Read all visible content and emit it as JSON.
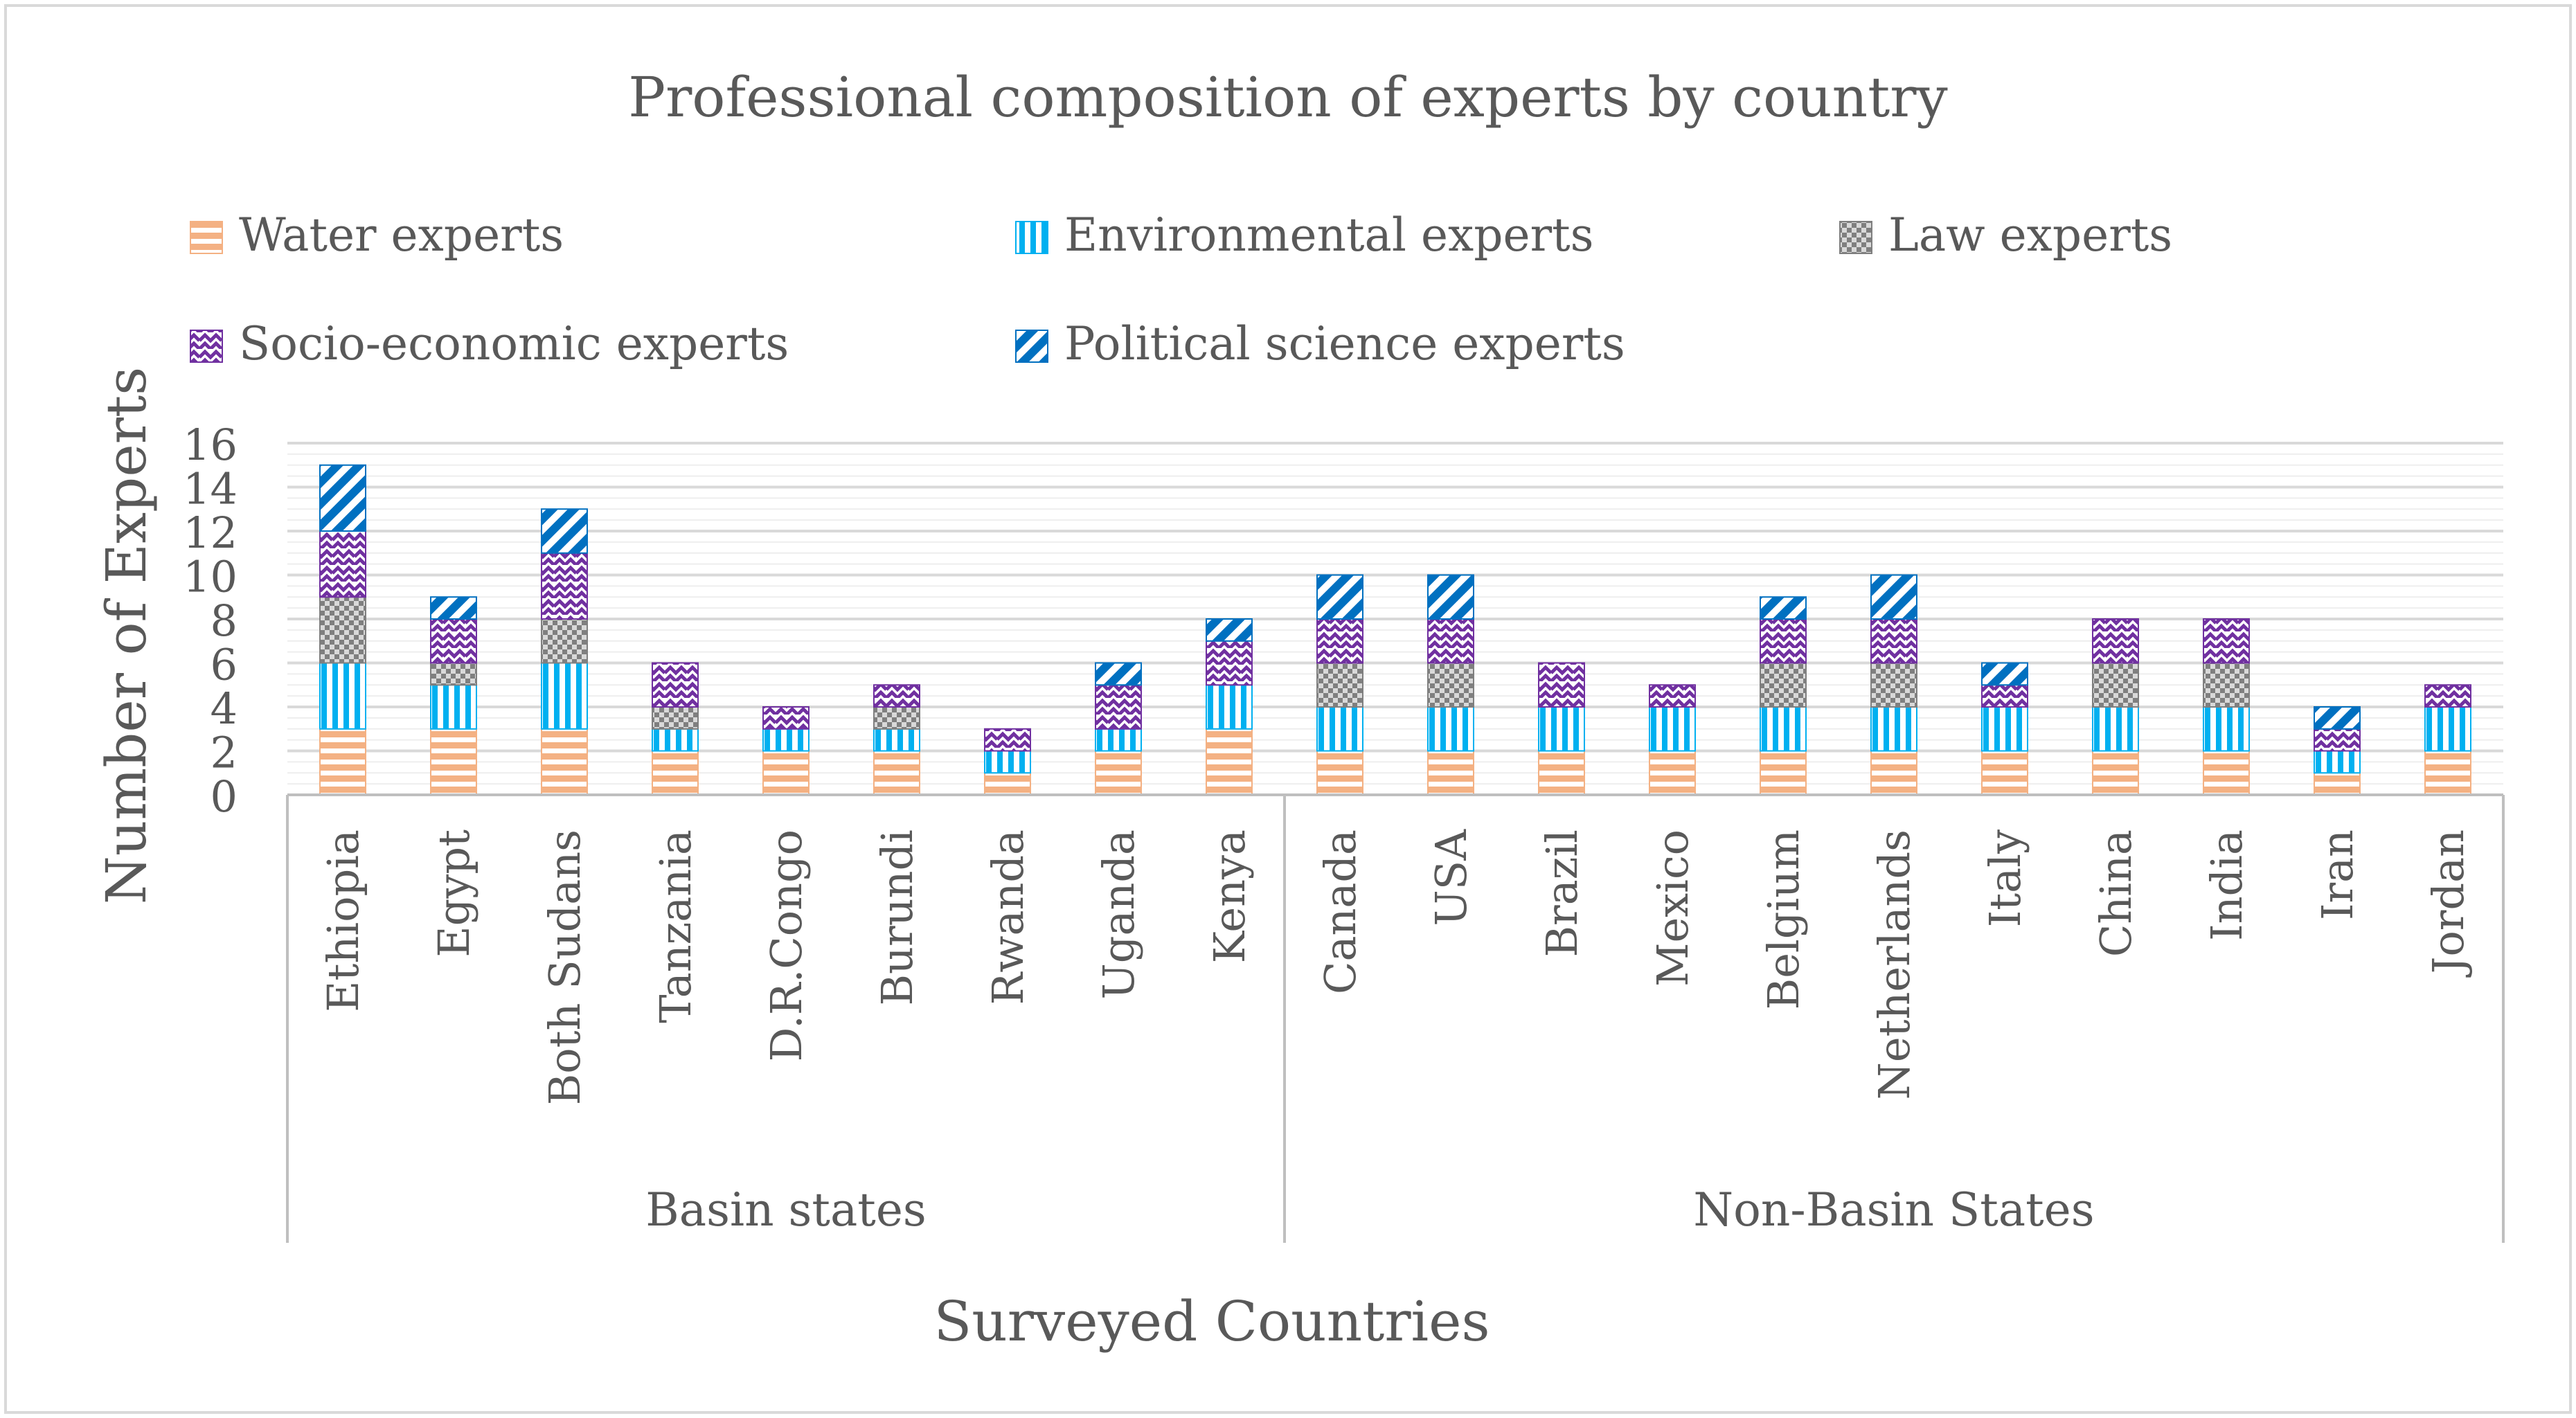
{
  "chart_data": {
    "type": "bar",
    "stacked": true,
    "title": "Professional composition of experts by country",
    "xlabel": "Surveyed Countries",
    "ylabel": "Number of Experts",
    "ylim": [
      0,
      16
    ],
    "yticks": [
      0,
      2,
      4,
      6,
      8,
      10,
      12,
      14,
      16
    ],
    "grid": true,
    "legend_position": "top",
    "groups": [
      {
        "label": "Basin states",
        "count": 9
      },
      {
        "label": "Non-Basin States",
        "count": 11
      }
    ],
    "categories": [
      "Ethiopia",
      "Egypt",
      "Both Sudans",
      "Tanzania",
      "D.R.Congo",
      "Burundi",
      "Rwanda",
      "Uganda",
      "Kenya",
      "Canada",
      "USA",
      "Brazil",
      "Mexico",
      "Belgium",
      "Netherlands",
      "Italy",
      "China",
      "India",
      "Iran",
      "Jordan"
    ],
    "series": [
      {
        "name": "Water experts",
        "pattern": "hstripe",
        "color": "#f4b183",
        "values": [
          3,
          3,
          3,
          2,
          2,
          2,
          1,
          2,
          3,
          2,
          2,
          2,
          2,
          2,
          2,
          2,
          2,
          2,
          1,
          2
        ]
      },
      {
        "name": "Environmental experts",
        "pattern": "vstripe",
        "color": "#00b0f0",
        "values": [
          3,
          2,
          3,
          1,
          1,
          1,
          1,
          1,
          2,
          2,
          2,
          2,
          2,
          2,
          2,
          2,
          2,
          2,
          1,
          2
        ]
      },
      {
        "name": "Law experts",
        "pattern": "check",
        "color": "#7f7f7f",
        "values": [
          3,
          1,
          2,
          1,
          0,
          1,
          0,
          0,
          0,
          2,
          2,
          0,
          0,
          2,
          2,
          0,
          2,
          2,
          0,
          0
        ]
      },
      {
        "name": "Socio-economic experts",
        "pattern": "wave",
        "color": "#7030a0",
        "values": [
          3,
          2,
          3,
          2,
          1,
          1,
          1,
          2,
          2,
          2,
          2,
          2,
          1,
          2,
          2,
          1,
          2,
          2,
          1,
          1
        ]
      },
      {
        "name": "Political science experts",
        "pattern": "diag",
        "color": "#0070c0",
        "values": [
          3,
          1,
          2,
          0,
          0,
          0,
          0,
          1,
          1,
          2,
          2,
          0,
          0,
          1,
          2,
          1,
          0,
          0,
          1,
          0
        ]
      }
    ]
  }
}
